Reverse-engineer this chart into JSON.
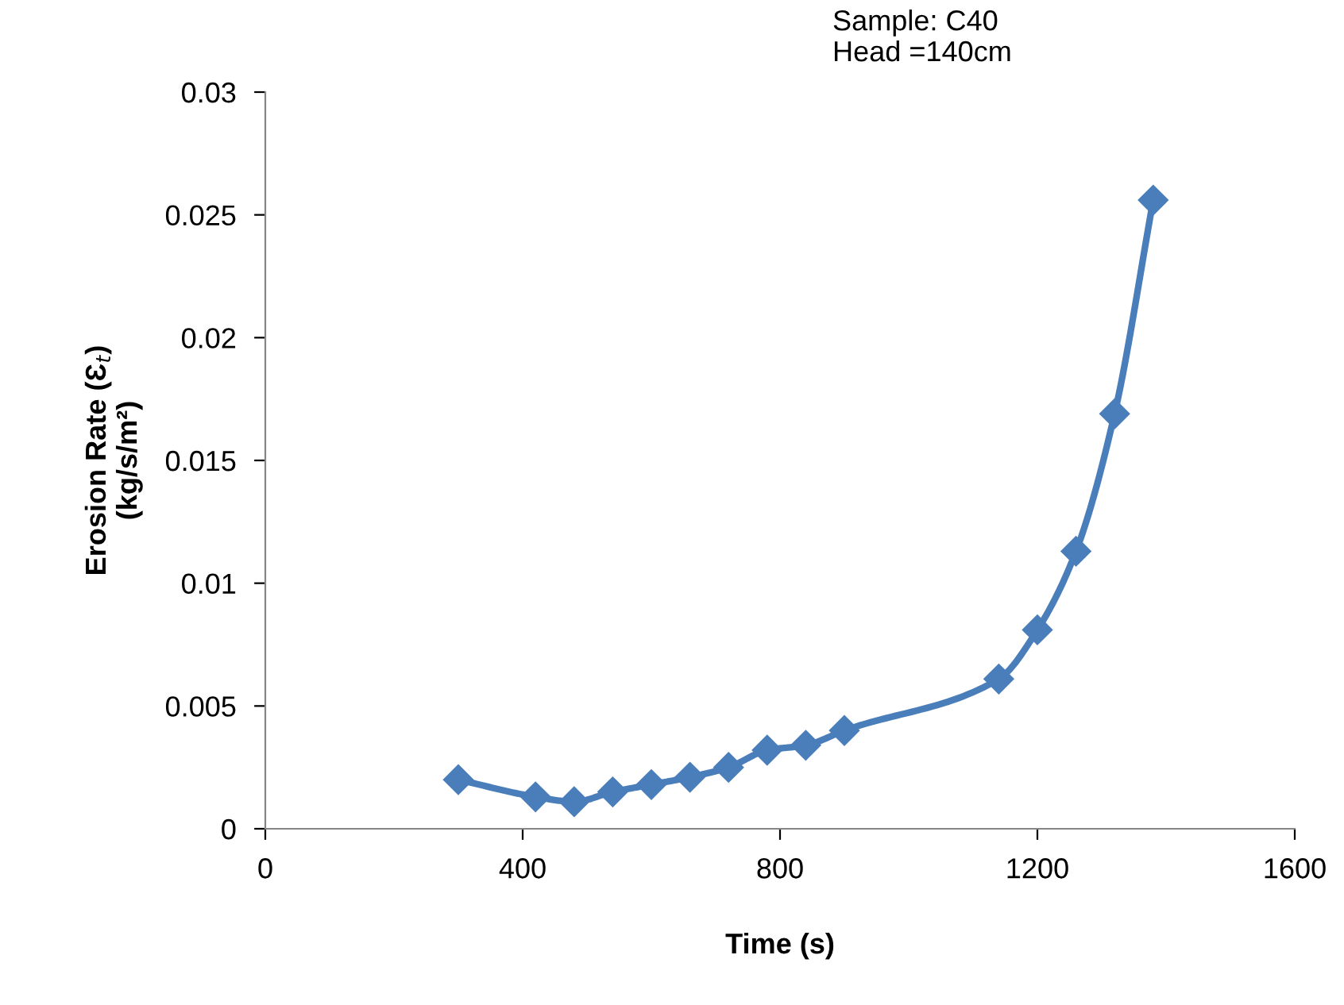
{
  "chart_data": {
    "type": "line",
    "xlabel": "Time (s)",
    "ylabel": "Erosion Rate (Ɛ$_{t}$)\n(kg/s/m²)",
    "annotations": [
      "Sample: C40\nHead =140cm"
    ],
    "x": [
      300,
      420,
      480,
      540,
      600,
      660,
      720,
      780,
      840,
      900,
      1140,
      1200,
      1260,
      1320,
      1380
    ],
    "series": [
      {
        "color": "#4a7ebb",
        "values": [
          0.002,
          0.0013,
          0.0011,
          0.0015,
          0.0018,
          0.0021,
          0.0025,
          0.0032,
          0.0034,
          0.004,
          0.0061,
          0.0081,
          0.0113,
          0.0169,
          0.0256
        ]
      }
    ],
    "xlim": [
      0,
      1600
    ],
    "xticks": [
      0,
      400,
      800,
      1200,
      1600
    ],
    "ylim": [
      0,
      0.03
    ],
    "yticks": [
      {
        "value": 0,
        "label": "0"
      },
      0.005,
      0.01,
      0.015,
      0.02,
      0.025,
      0.03
    ],
    "grid": false,
    "legend": false,
    "marker": "diamond",
    "line_style": "solid"
  }
}
